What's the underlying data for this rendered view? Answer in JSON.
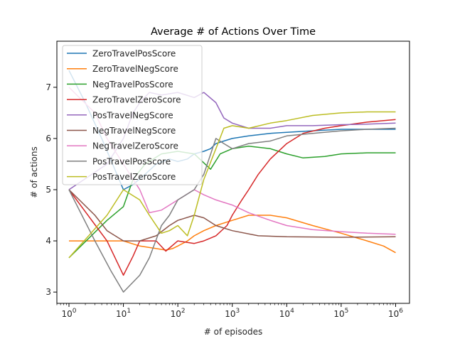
{
  "chart_data": {
    "type": "line",
    "title": "Average # of Actions Over Time",
    "xlabel": "# of episodes",
    "ylabel": "# of actions",
    "xscale": "log",
    "xlim": [
      0.6,
      1800000
    ],
    "ylim": [
      2.78,
      7.9
    ],
    "x_ticks": [
      {
        "value": 1,
        "base": "10",
        "exp": "0"
      },
      {
        "value": 10,
        "base": "10",
        "exp": "1"
      },
      {
        "value": 100,
        "base": "10",
        "exp": "2"
      },
      {
        "value": 1000,
        "base": "10",
        "exp": "3"
      },
      {
        "value": 10000,
        "base": "10",
        "exp": "4"
      },
      {
        "value": 100000,
        "base": "10",
        "exp": "5"
      },
      {
        "value": 1000000,
        "base": "10",
        "exp": "6"
      }
    ],
    "y_ticks": [
      3,
      4,
      5,
      6,
      7
    ],
    "grid": false,
    "legend": "top-left",
    "series": [
      {
        "name": "ZeroTravelPosScore",
        "color": "#1f77b4",
        "points": [
          [
            1,
            7.33
          ],
          [
            2,
            6.7
          ],
          [
            4,
            6.0
          ],
          [
            10,
            5.0
          ],
          [
            15,
            5.1
          ],
          [
            25,
            5.3
          ],
          [
            40,
            5.5
          ],
          [
            70,
            5.6
          ],
          [
            100,
            5.55
          ],
          [
            150,
            5.6
          ],
          [
            200,
            5.7
          ],
          [
            300,
            5.75
          ],
          [
            400,
            5.8
          ],
          [
            500,
            5.9
          ],
          [
            700,
            5.95
          ],
          [
            1000,
            6.0
          ],
          [
            2000,
            6.05
          ],
          [
            5000,
            6.1
          ],
          [
            10000,
            6.12
          ],
          [
            30000,
            6.15
          ],
          [
            100000,
            6.18
          ],
          [
            300000,
            6.18
          ],
          [
            1000000,
            6.18
          ]
        ]
      },
      {
        "name": "ZeroTravelNegScore",
        "color": "#ff7f0e",
        "points": [
          [
            1,
            4.0
          ],
          [
            3,
            4.0
          ],
          [
            6,
            4.0
          ],
          [
            10,
            4.0
          ],
          [
            20,
            3.9
          ],
          [
            40,
            3.85
          ],
          [
            60,
            3.82
          ],
          [
            80,
            3.85
          ],
          [
            100,
            3.9
          ],
          [
            150,
            4.0
          ],
          [
            200,
            4.1
          ],
          [
            300,
            4.2
          ],
          [
            500,
            4.3
          ],
          [
            1000,
            4.4
          ],
          [
            2000,
            4.5
          ],
          [
            5000,
            4.5
          ],
          [
            10000,
            4.45
          ],
          [
            30000,
            4.3
          ],
          [
            100000,
            4.15
          ],
          [
            300000,
            4.0
          ],
          [
            600000,
            3.9
          ],
          [
            1000000,
            3.77
          ]
        ]
      },
      {
        "name": "NegTravelPosScore",
        "color": "#2ca02c",
        "points": [
          [
            1,
            3.67
          ],
          [
            5,
            4.4
          ],
          [
            10,
            4.67
          ],
          [
            15,
            5.2
          ],
          [
            25,
            5.5
          ],
          [
            50,
            5.7
          ],
          [
            100,
            5.75
          ],
          [
            200,
            5.7
          ],
          [
            400,
            5.4
          ],
          [
            600,
            5.7
          ],
          [
            1000,
            5.8
          ],
          [
            2000,
            5.85
          ],
          [
            5000,
            5.8
          ],
          [
            10000,
            5.7
          ],
          [
            20000,
            5.62
          ],
          [
            50000,
            5.65
          ],
          [
            100000,
            5.7
          ],
          [
            300000,
            5.72
          ],
          [
            1000000,
            5.72
          ]
        ]
      },
      {
        "name": "ZeroTravelZeroScore",
        "color": "#d62728",
        "points": [
          [
            1,
            5.0
          ],
          [
            5,
            4.0
          ],
          [
            10,
            3.33
          ],
          [
            15,
            3.7
          ],
          [
            20,
            4.0
          ],
          [
            40,
            4.0
          ],
          [
            60,
            3.8
          ],
          [
            100,
            4.0
          ],
          [
            200,
            3.95
          ],
          [
            300,
            4.0
          ],
          [
            500,
            4.1
          ],
          [
            800,
            4.3
          ],
          [
            1000,
            4.5
          ],
          [
            1500,
            4.8
          ],
          [
            2000,
            5.0
          ],
          [
            3000,
            5.3
          ],
          [
            5000,
            5.6
          ],
          [
            10000,
            5.9
          ],
          [
            20000,
            6.1
          ],
          [
            50000,
            6.2
          ],
          [
            100000,
            6.25
          ],
          [
            300000,
            6.32
          ],
          [
            1000000,
            6.37
          ]
        ]
      },
      {
        "name": "PosTravelNegScore",
        "color": "#9467bd",
        "points": [
          [
            1,
            5.0
          ],
          [
            5,
            5.5
          ],
          [
            10,
            6.0
          ],
          [
            15,
            6.5
          ],
          [
            20,
            6.7
          ],
          [
            30,
            6.9
          ],
          [
            50,
            6.85
          ],
          [
            100,
            6.9
          ],
          [
            200,
            6.8
          ],
          [
            300,
            6.9
          ],
          [
            500,
            6.7
          ],
          [
            700,
            6.4
          ],
          [
            1000,
            6.3
          ],
          [
            2000,
            6.2
          ],
          [
            5000,
            6.2
          ],
          [
            10000,
            6.25
          ],
          [
            30000,
            6.25
          ],
          [
            100000,
            6.27
          ],
          [
            300000,
            6.28
          ],
          [
            1000000,
            6.3
          ]
        ]
      },
      {
        "name": "NegTravelNegScore",
        "color": "#8c564b",
        "points": [
          [
            1,
            5.0
          ],
          [
            3,
            4.5
          ],
          [
            5,
            4.2
          ],
          [
            10,
            4.0
          ],
          [
            15,
            4.0
          ],
          [
            20,
            4.0
          ],
          [
            40,
            4.1
          ],
          [
            70,
            4.3
          ],
          [
            100,
            4.4
          ],
          [
            200,
            4.5
          ],
          [
            300,
            4.45
          ],
          [
            500,
            4.3
          ],
          [
            1000,
            4.2
          ],
          [
            3000,
            4.1
          ],
          [
            10000,
            4.08
          ],
          [
            100000,
            4.07
          ],
          [
            1000000,
            4.08
          ]
        ]
      },
      {
        "name": "NegTravelZeroScore",
        "color": "#e377c2",
        "points": [
          [
            1,
            7.0
          ],
          [
            3,
            6.5
          ],
          [
            5,
            6.0
          ],
          [
            10,
            5.5
          ],
          [
            20,
            5.0
          ],
          [
            30,
            4.55
          ],
          [
            50,
            4.6
          ],
          [
            100,
            4.8
          ],
          [
            200,
            5.0
          ],
          [
            300,
            4.9
          ],
          [
            500,
            4.8
          ],
          [
            1000,
            4.7
          ],
          [
            2000,
            4.55
          ],
          [
            5000,
            4.4
          ],
          [
            10000,
            4.3
          ],
          [
            30000,
            4.22
          ],
          [
            100000,
            4.18
          ],
          [
            300000,
            4.15
          ],
          [
            1000000,
            4.13
          ]
        ]
      },
      {
        "name": "PosTravelPosScore",
        "color": "#7f7f7f",
        "points": [
          [
            1,
            5.0
          ],
          [
            3,
            4.0
          ],
          [
            6,
            3.4
          ],
          [
            10,
            3.0
          ],
          [
            20,
            3.33
          ],
          [
            30,
            3.67
          ],
          [
            50,
            4.3
          ],
          [
            70,
            4.5
          ],
          [
            100,
            4.8
          ],
          [
            200,
            5.0
          ],
          [
            300,
            5.3
          ],
          [
            500,
            6.0
          ],
          [
            700,
            5.9
          ],
          [
            1000,
            5.8
          ],
          [
            2000,
            5.9
          ],
          [
            5000,
            5.95
          ],
          [
            10000,
            6.05
          ],
          [
            30000,
            6.1
          ],
          [
            100000,
            6.15
          ],
          [
            300000,
            6.18
          ],
          [
            1000000,
            6.2
          ]
        ]
      },
      {
        "name": "PosTravelZeroScore",
        "color": "#bcbd22",
        "points": [
          [
            1,
            3.67
          ],
          [
            5,
            4.5
          ],
          [
            10,
            5.0
          ],
          [
            20,
            4.8
          ],
          [
            30,
            4.5
          ],
          [
            50,
            4.15
          ],
          [
            70,
            4.2
          ],
          [
            100,
            4.3
          ],
          [
            150,
            4.1
          ],
          [
            200,
            4.5
          ],
          [
            300,
            5.2
          ],
          [
            500,
            5.8
          ],
          [
            700,
            6.2
          ],
          [
            1000,
            6.25
          ],
          [
            2000,
            6.2
          ],
          [
            5000,
            6.3
          ],
          [
            10000,
            6.35
          ],
          [
            30000,
            6.45
          ],
          [
            100000,
            6.5
          ],
          [
            300000,
            6.52
          ],
          [
            1000000,
            6.52
          ]
        ]
      }
    ]
  }
}
